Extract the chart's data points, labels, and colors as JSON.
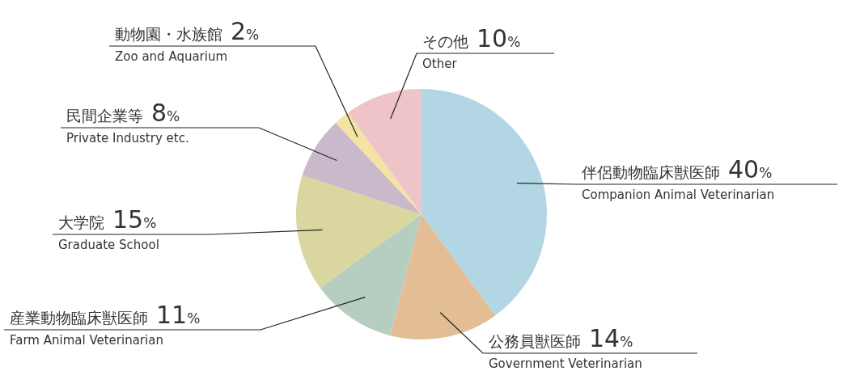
{
  "chart_data": {
    "type": "pie",
    "categories": [
      "伴侶動物臨床獣医師\nCompanion Animal Veterinarian",
      "公務員獣医師\nGovernment Veterinarian",
      "産業動物臨床獣医師\nFarm Animal Veterinarian",
      "大学院\nGraduate School",
      "民間企業等\nPrivate Industry etc.",
      "動物園・水族館\nZoo and Aquarium",
      "その他\nOther"
    ],
    "values": [
      40,
      14,
      11,
      15,
      8,
      2,
      10
    ],
    "value_labels": [
      "40%",
      "14%",
      "11%",
      "15%",
      "8%",
      "2%",
      "10%"
    ],
    "colors": [
      "#b3d6e5",
      "#e3bd93",
      "#b6cebf",
      "#d9d79f",
      "#c9b9cb",
      "#f4e3a2",
      "#eec4c9"
    ]
  }
}
